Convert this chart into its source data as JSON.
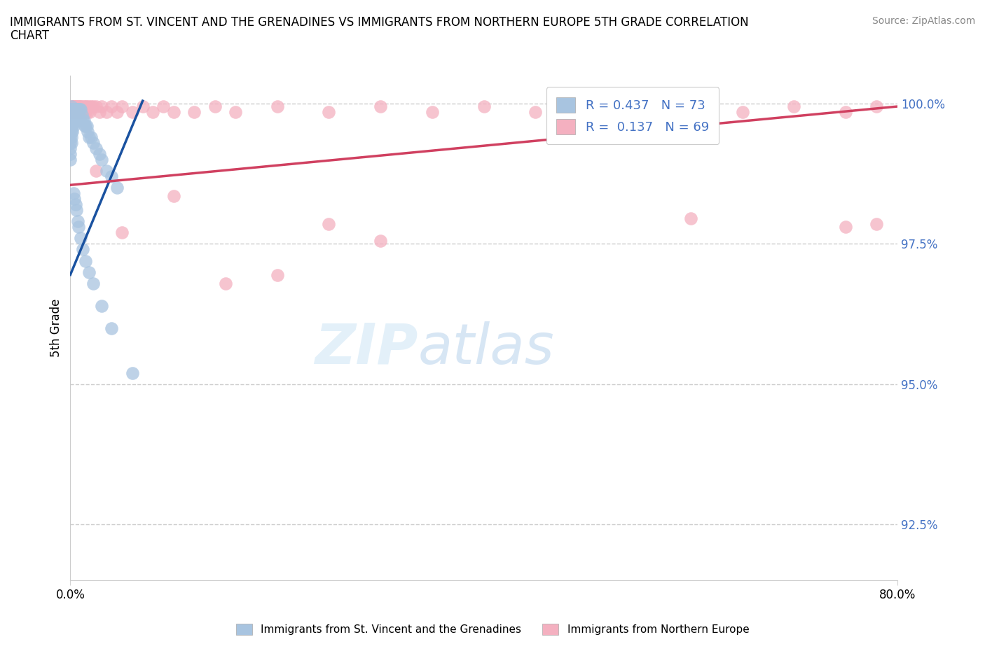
{
  "title": "IMMIGRANTS FROM ST. VINCENT AND THE GRENADINES VS IMMIGRANTS FROM NORTHERN EUROPE 5TH GRADE CORRELATION\nCHART",
  "source": "Source: ZipAtlas.com",
  "ylabel": "5th Grade",
  "xlim": [
    0.0,
    0.8
  ],
  "ylim": [
    0.915,
    1.005
  ],
  "yticks": [
    0.925,
    0.95,
    0.975,
    1.0
  ],
  "ytick_labels": [
    "92.5%",
    "95.0%",
    "97.5%",
    "100.0%"
  ],
  "xticks": [
    0.0,
    0.8
  ],
  "xtick_labels": [
    "0.0%",
    "80.0%"
  ],
  "blue_R": 0.437,
  "blue_N": 73,
  "pink_R": 0.137,
  "pink_N": 69,
  "blue_color": "#a8c4e0",
  "blue_line_color": "#1a52a0",
  "pink_color": "#f4b0c0",
  "pink_line_color": "#d04060",
  "legend_label_blue": "Immigrants from St. Vincent and the Grenadines",
  "legend_label_pink": "Immigrants from Northern Europe",
  "watermark_zip": "ZIP",
  "watermark_atlas": "atlas",
  "blue_scatter_x": [
    0.0,
    0.0,
    0.0,
    0.0,
    0.0,
    0.0,
    0.0,
    0.0,
    0.0,
    0.0,
    0.001,
    0.001,
    0.001,
    0.001,
    0.001,
    0.001,
    0.001,
    0.001,
    0.002,
    0.002,
    0.002,
    0.002,
    0.002,
    0.003,
    0.003,
    0.003,
    0.003,
    0.004,
    0.004,
    0.004,
    0.005,
    0.005,
    0.005,
    0.006,
    0.006,
    0.007,
    0.007,
    0.008,
    0.008,
    0.009,
    0.009,
    0.01,
    0.01,
    0.011,
    0.012,
    0.013,
    0.014,
    0.015,
    0.016,
    0.017,
    0.018,
    0.02,
    0.022,
    0.025,
    0.028,
    0.03,
    0.035,
    0.04,
    0.045,
    0.003,
    0.004,
    0.005,
    0.006,
    0.007,
    0.008,
    0.01,
    0.012,
    0.015,
    0.018,
    0.022,
    0.03,
    0.04,
    0.06
  ],
  "blue_scatter_y": [
    0.999,
    0.998,
    0.997,
    0.996,
    0.995,
    0.994,
    0.993,
    0.992,
    0.991,
    0.99,
    0.9995,
    0.999,
    0.998,
    0.997,
    0.996,
    0.995,
    0.994,
    0.993,
    0.999,
    0.998,
    0.997,
    0.996,
    0.995,
    0.999,
    0.998,
    0.997,
    0.996,
    0.999,
    0.998,
    0.997,
    0.999,
    0.998,
    0.997,
    0.999,
    0.998,
    0.999,
    0.998,
    0.999,
    0.997,
    0.999,
    0.997,
    0.999,
    0.997,
    0.998,
    0.997,
    0.997,
    0.996,
    0.996,
    0.996,
    0.995,
    0.994,
    0.994,
    0.993,
    0.992,
    0.991,
    0.99,
    0.988,
    0.987,
    0.985,
    0.984,
    0.983,
    0.982,
    0.981,
    0.979,
    0.978,
    0.976,
    0.974,
    0.972,
    0.97,
    0.968,
    0.964,
    0.96,
    0.952
  ],
  "blue_trend_x": [
    0.0,
    0.07
  ],
  "blue_trend_y": [
    0.9695,
    1.0005
  ],
  "pink_scatter_x": [
    0.001,
    0.001,
    0.002,
    0.002,
    0.003,
    0.003,
    0.004,
    0.004,
    0.005,
    0.005,
    0.006,
    0.006,
    0.007,
    0.007,
    0.008,
    0.008,
    0.009,
    0.01,
    0.01,
    0.011,
    0.012,
    0.013,
    0.014,
    0.015,
    0.015,
    0.016,
    0.017,
    0.018,
    0.019,
    0.02,
    0.022,
    0.025,
    0.028,
    0.03,
    0.035,
    0.04,
    0.045,
    0.05,
    0.06,
    0.07,
    0.08,
    0.09,
    0.1,
    0.12,
    0.14,
    0.16,
    0.2,
    0.25,
    0.3,
    0.35,
    0.4,
    0.45,
    0.5,
    0.55,
    0.6,
    0.65,
    0.7,
    0.75,
    0.78,
    0.05,
    0.1,
    0.15,
    0.2,
    0.25,
    0.3,
    0.6,
    0.75,
    0.78,
    0.025
  ],
  "pink_scatter_y": [
    0.9995,
    0.9985,
    0.9995,
    0.9985,
    0.9995,
    0.9985,
    0.9995,
    0.9985,
    0.9995,
    0.9985,
    0.9995,
    0.9985,
    0.9995,
    0.9985,
    0.9995,
    0.9985,
    0.9995,
    0.9995,
    0.9985,
    0.9995,
    0.9985,
    0.9995,
    0.9985,
    0.9995,
    0.9985,
    0.9995,
    0.9985,
    0.9995,
    0.9985,
    0.9995,
    0.9995,
    0.9995,
    0.9985,
    0.9995,
    0.9985,
    0.9995,
    0.9985,
    0.9995,
    0.9985,
    0.9995,
    0.9985,
    0.9995,
    0.9985,
    0.9985,
    0.9995,
    0.9985,
    0.9995,
    0.9985,
    0.9995,
    0.9985,
    0.9995,
    0.9985,
    0.9995,
    0.9985,
    0.9995,
    0.9985,
    0.9995,
    0.9985,
    0.9995,
    0.977,
    0.9835,
    0.968,
    0.9695,
    0.9785,
    0.9755,
    0.9795,
    0.978,
    0.9785,
    0.988
  ],
  "pink_trend_x": [
    0.0,
    0.8
  ],
  "pink_trend_y": [
    0.9855,
    0.9995
  ]
}
